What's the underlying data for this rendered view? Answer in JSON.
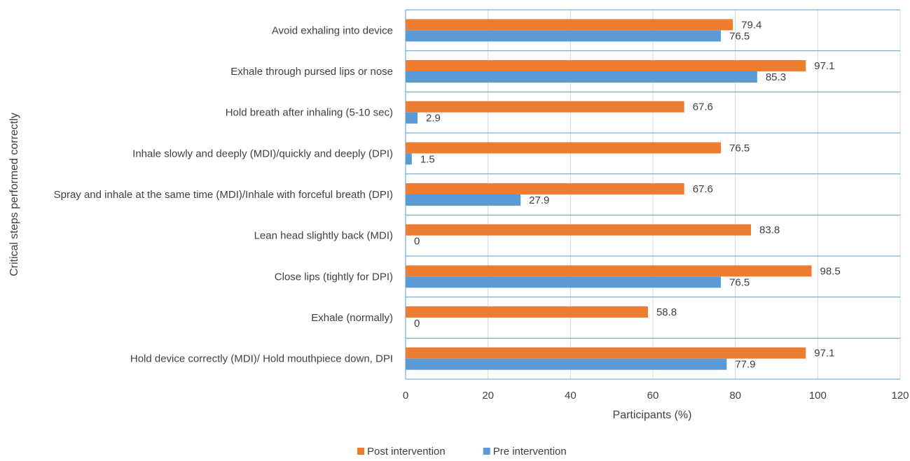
{
  "chart_data": {
    "type": "bar",
    "orientation": "horizontal",
    "categories": [
      "Avoid exhaling into device",
      "Exhale through pursed lips or nose",
      "Hold breath after inhaling (5-10 sec)",
      "Inhale slowly and deeply (MDI)/quickly and deeply (DPI)",
      "Spray and inhale at the same time (MDI)/Inhale with forceful breath (DPI)",
      "Lean head slightly back (MDI)",
      "Close lips (tightly for DPI)",
      "Exhale (normally)",
      "Hold device correctly (MDI)/ Hold mouthpiece down, DPI"
    ],
    "series": [
      {
        "name": "Post intervention",
        "color": "#ed7d31",
        "values": [
          79.4,
          97.1,
          67.6,
          76.5,
          67.6,
          83.8,
          98.5,
          58.8,
          97.1
        ]
      },
      {
        "name": "Pre intervention",
        "color": "#5b9bd5",
        "values": [
          76.5,
          85.3,
          2.9,
          1.5,
          27.9,
          0,
          76.5,
          0,
          77.9
        ]
      }
    ],
    "xlabel": "Participants (%)",
    "ylabel": "Critical steps performed correctly",
    "xlim": [
      0,
      120
    ],
    "xticks": [
      0,
      20,
      40,
      60,
      80,
      100,
      120
    ],
    "grid": "vertical",
    "legend_position": "bottom"
  }
}
